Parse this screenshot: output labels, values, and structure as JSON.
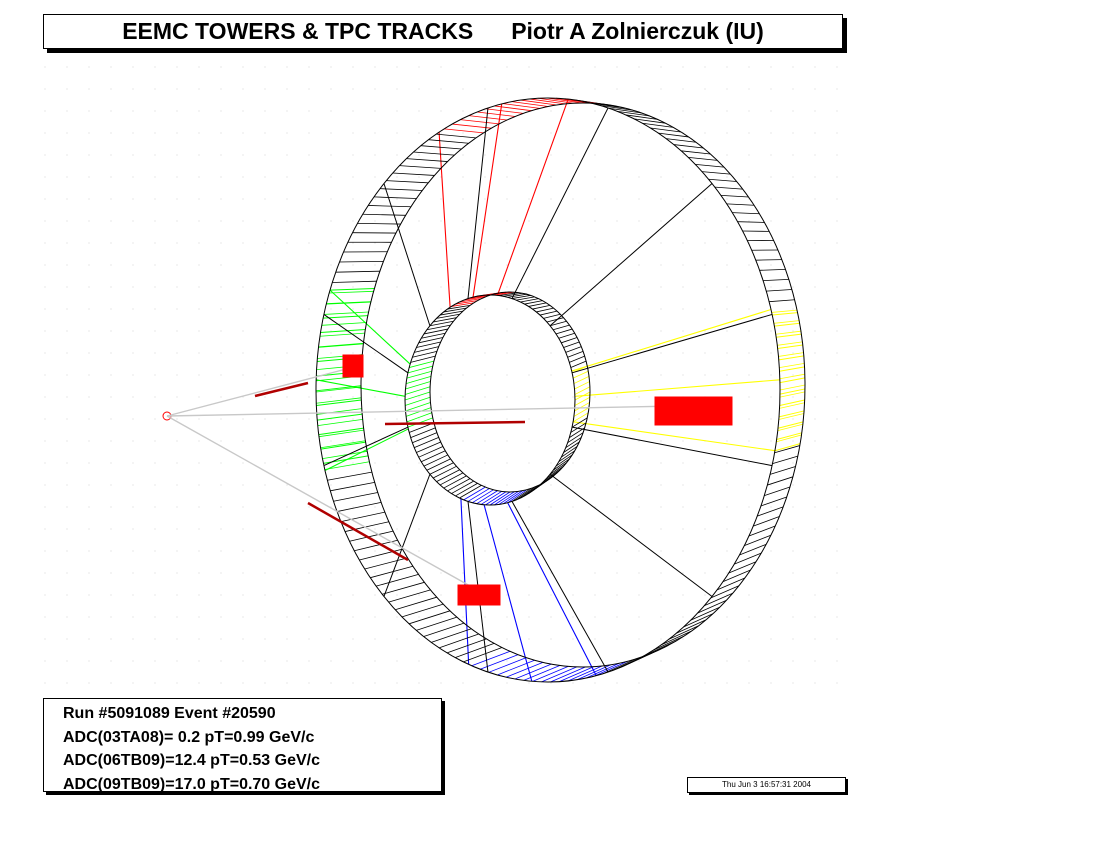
{
  "title": {
    "main": "EEMC TOWERS & TPC TRACKS",
    "author": "Piotr A Zolnierczuk (IU)"
  },
  "info": {
    "run_event": "Run #5091089 Event #20590",
    "adc_lines": [
      "ADC(03TA08)= 0.2 pT=0.99 GeV/c",
      "ADC(06TB09)=12.4 pT=0.53 GeV/c",
      "ADC(09TB09)=17.0 pT=0.70 GeV/c"
    ]
  },
  "timestamp": "Thu Jun  3 16:57:31 2004",
  "colors": {
    "red": "#ff0000",
    "green": "#00ff00",
    "blue": "#0000ff",
    "yellow": "#ffff00",
    "track": "#c8c8c8",
    "outline": "#000000"
  }
}
